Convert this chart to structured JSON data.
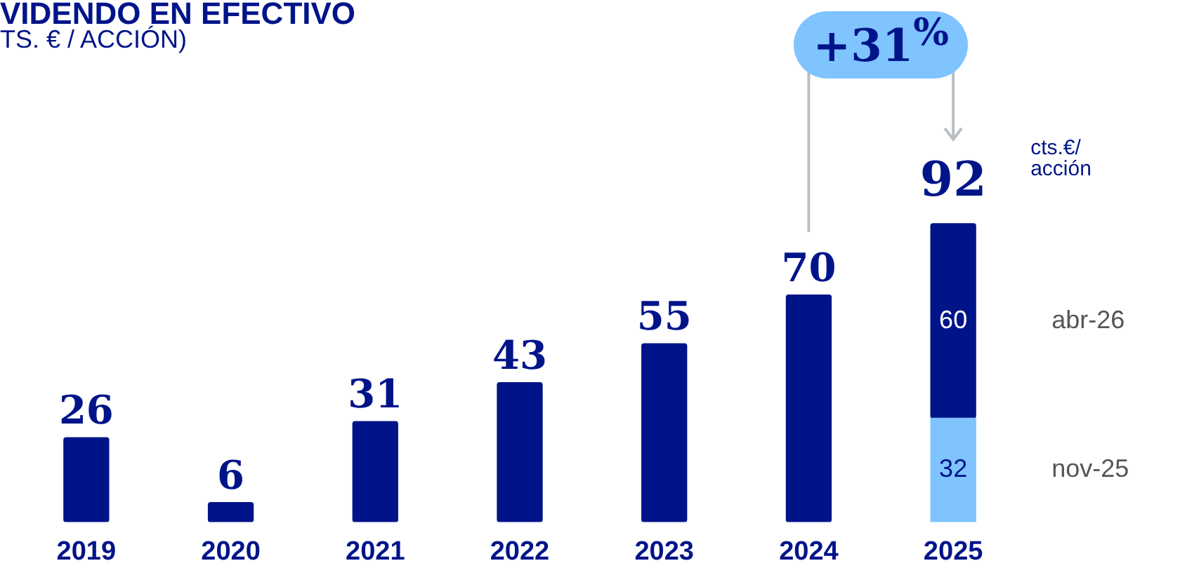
{
  "chart_data": {
    "type": "bar",
    "title": "VIDENDO EN EFECTIVO",
    "subtitle": "TS. € / ACCIÓN)",
    "categories": [
      "2019",
      "2020",
      "2021",
      "2022",
      "2023",
      "2024",
      "2025"
    ],
    "stacked": true,
    "data_labels": true,
    "totals": [
      null,
      null,
      null,
      null,
      null,
      null,
      "92"
    ],
    "legend": false,
    "grid": false,
    "series": [
      {
        "name": "nov-25",
        "color": "#7fc3ff",
        "values": [
          null,
          null,
          null,
          null,
          null,
          null,
          32
        ]
      },
      {
        "name": "abr-26",
        "color": "#001489",
        "values": [
          null,
          null,
          null,
          null,
          null,
          null,
          60
        ]
      },
      {
        "color": "#001489",
        "values": [
          26,
          6,
          31,
          43,
          55,
          70,
          null
        ]
      }
    ],
    "annotations": [
      "cts.€/ acción",
      "+31$^{%}$"
    ]
  }
}
